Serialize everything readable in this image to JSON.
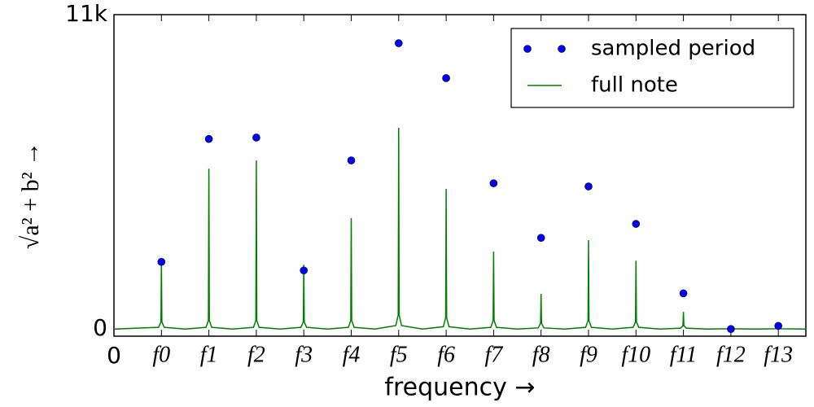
{
  "chart_data": {
    "type": "scatter",
    "xlabel": "frequency →",
    "ylabel": "√a² + b²  →",
    "xlim": [
      0,
      14.58
    ],
    "ylim": [
      -250,
      11000
    ],
    "xticks": [
      0,
      {
        "value": 1,
        "label": "f0"
      },
      {
        "value": 2,
        "label": "f1"
      },
      {
        "value": 3,
        "label": "f2"
      },
      {
        "value": 4,
        "label": "f3"
      },
      {
        "value": 5,
        "label": "f4"
      },
      {
        "value": 6,
        "label": "f5"
      },
      {
        "value": 7,
        "label": "f6"
      },
      {
        "value": 8,
        "label": "f7"
      },
      {
        "value": 9,
        "label": "f8"
      },
      {
        "value": 10,
        "label": "f9"
      },
      {
        "value": 11,
        "label": "f10"
      },
      {
        "value": 12,
        "label": "f11"
      },
      {
        "value": 13,
        "label": "f12"
      },
      {
        "value": 14,
        "label": "f13"
      }
    ],
    "yticks": [
      0,
      {
        "value": 11000,
        "label": "11k"
      }
    ],
    "legend": "upper right",
    "series": [
      {
        "name": "sampled period",
        "style": "markers",
        "color": "#0000ff",
        "x": [
          1,
          2,
          3,
          4,
          5,
          6,
          7,
          8,
          9,
          10,
          11,
          12,
          13,
          14
        ],
        "values": [
          2350,
          6650,
          6700,
          2050,
          5900,
          10000,
          8780,
          5100,
          3190,
          4990,
          3680,
          1250,
          0,
          110
        ]
      },
      {
        "name": "full note",
        "style": "line",
        "color": "#008000",
        "x": [
          0,
          0.94,
          0.99,
          1,
          1.01,
          1.06,
          1.5,
          1.94,
          1.99,
          2,
          2.01,
          2.06,
          2.5,
          2.94,
          2.99,
          3,
          3.01,
          3.06,
          3.5,
          3.94,
          3.99,
          4,
          4.01,
          4.06,
          4.5,
          4.94,
          4.99,
          5,
          5.01,
          5.06,
          5.5,
          5.94,
          5.99,
          6,
          6.01,
          6.06,
          6.5,
          6.94,
          6.99,
          7,
          7.01,
          7.06,
          7.5,
          7.94,
          7.99,
          8,
          8.01,
          8.06,
          8.5,
          8.94,
          8.99,
          9,
          9.01,
          9.06,
          9.5,
          9.94,
          9.99,
          10,
          10.01,
          10.06,
          10.5,
          10.94,
          10.99,
          11,
          11.01,
          11.06,
          11.5,
          11.94,
          11.99,
          12,
          12.01,
          12.06,
          12.5,
          12.94,
          12.99,
          13,
          13.01,
          13.06,
          13.5,
          13.94,
          13.99,
          14,
          14.01,
          14.06,
          14.58
        ],
        "values": [
          0,
          60,
          250,
          2340,
          250,
          60,
          0,
          60,
          300,
          5610,
          300,
          60,
          0,
          60,
          300,
          5900,
          300,
          60,
          0,
          60,
          250,
          2250,
          250,
          60,
          0,
          60,
          300,
          3880,
          300,
          60,
          0,
          120,
          500,
          7040,
          500,
          120,
          0,
          80,
          400,
          4900,
          400,
          80,
          0,
          60,
          300,
          2710,
          300,
          60,
          0,
          40,
          200,
          1230,
          200,
          40,
          0,
          60,
          300,
          3110,
          300,
          60,
          0,
          60,
          250,
          2390,
          250,
          60,
          0,
          30,
          120,
          600,
          120,
          30,
          0,
          10,
          30,
          60,
          30,
          10,
          0,
          10,
          20,
          40,
          20,
          10,
          0
        ]
      }
    ]
  }
}
